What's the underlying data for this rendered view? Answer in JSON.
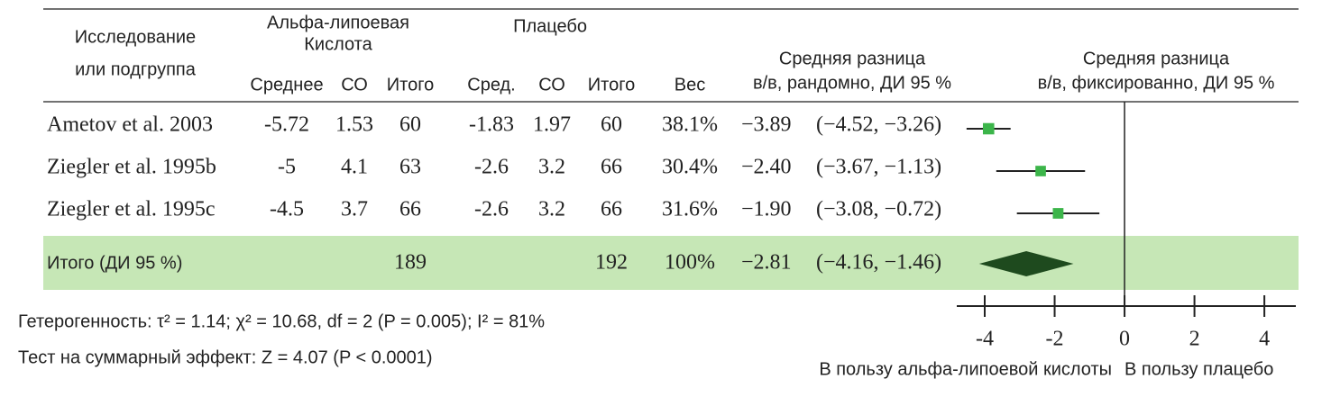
{
  "chart_data": {
    "type": "forest",
    "headers": {
      "study": [
        "Исследование",
        "или подгруппа"
      ],
      "group1": [
        "Альфа-липоевая",
        "Кислота"
      ],
      "group2": "Плацебо",
      "columns": [
        "Среднее",
        "СО",
        "Итого",
        "Сред.",
        "СО",
        "Итого",
        "Вес"
      ],
      "random": [
        "Средняя разница",
        "в/в, рандомно, ДИ 95 %"
      ],
      "fixed": [
        "Средняя разница",
        "в/в, фиксированно, ДИ 95 %"
      ]
    },
    "studies": [
      {
        "name": "Ametov et al. 2003",
        "mean1": -5.72,
        "sd1": 1.53,
        "n1": 60,
        "mean2": -1.83,
        "sd2": 1.97,
        "n2": 60,
        "weight": 38.1,
        "weight_label": "38.1%",
        "md": -3.89,
        "md_label": "−3.89",
        "lo": -4.52,
        "hi": -3.26,
        "ci_label": "(−4.52, −3.26)"
      },
      {
        "name": "Ziegler et al. 1995b",
        "mean1": -5,
        "sd1": 4.1,
        "n1": 63,
        "mean2": -2.6,
        "sd2": 3.2,
        "n2": 66,
        "weight": 30.4,
        "weight_label": "30.4%",
        "md": -2.4,
        "md_label": "−2.40",
        "lo": -3.67,
        "hi": -1.13,
        "ci_label": "(−3.67, −1.13)"
      },
      {
        "name": "Ziegler et al. 1995c",
        "mean1": -4.5,
        "sd1": 3.7,
        "n1": 66,
        "mean2": -2.6,
        "sd2": 3.2,
        "n2": 66,
        "weight": 31.6,
        "weight_label": "31.6%",
        "md": -1.9,
        "md_label": "−1.90",
        "lo": -3.08,
        "hi": -0.72,
        "ci_label": "(−3.08, −0.72)"
      }
    ],
    "total": {
      "name": "Итого (ДИ 95 %)",
      "n1": 189,
      "n2": 192,
      "weight": 100,
      "weight_label": "100%",
      "md": -2.81,
      "md_label": "−2.81",
      "lo": -4.16,
      "hi": -1.46,
      "ci_label": "(−4.16, −1.46)"
    },
    "heterogeneity": "Гетерогенность:  τ² = 1.14; χ² = 10.68, df = 2 (P = 0.005); I² = 81%",
    "overall_test": "Тест на суммарный эффект: Z = 4.07 (P < 0.0001)",
    "xlim": [
      -4.8,
      4.9
    ],
    "xticks": [
      -4,
      -2,
      0,
      2,
      4
    ],
    "x_label_left": "В пользу альфа-липоевой кислоты",
    "x_label_right": "В пользу плацебо",
    "marker_color": "#3cb54a",
    "diamond_color": "#1e4a1e",
    "total_band_color": "#c6e7b6"
  }
}
